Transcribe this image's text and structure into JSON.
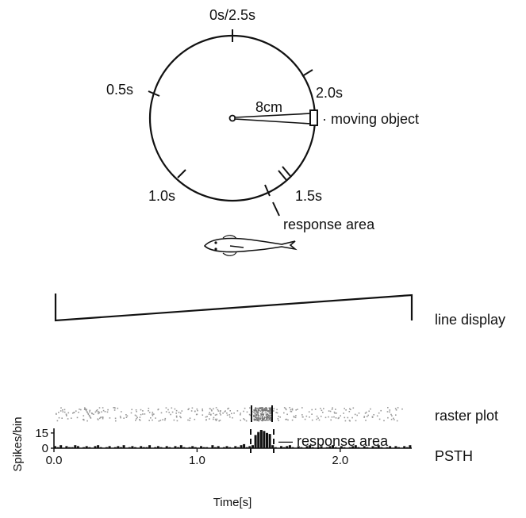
{
  "stimulus": {
    "time_labels": [
      "0s/2.5s",
      "2.0s",
      "0.5s",
      "1.0s",
      "1.5s"
    ],
    "distance_label": "8cm",
    "object_label": "· moving object",
    "response_area_label": "response area"
  },
  "line_display": {
    "label": "line display"
  },
  "raster": {
    "label": "raster plot"
  },
  "psth_panel": {
    "label": "PSTH",
    "response_area_label": "— response area"
  },
  "chart_data": {
    "type": "bar",
    "title": "",
    "xlabel": "Time[s]",
    "ylabel": "Spikes/bin",
    "xlim": [
      0,
      2.5
    ],
    "ylim": [
      0,
      18
    ],
    "x_ticks": [
      "0.0",
      "1.0",
      "2.0"
    ],
    "y_ticks": [
      "0",
      "15"
    ],
    "bin_width": 0.02,
    "values": [
      2,
      1,
      3,
      0,
      2,
      1,
      1,
      3,
      2,
      0,
      1,
      2,
      1,
      0,
      2,
      3,
      1,
      0,
      1,
      2,
      0,
      1,
      2,
      1,
      3,
      0,
      1,
      2,
      1,
      0,
      2,
      1,
      1,
      3,
      0,
      1,
      2,
      1,
      0,
      2,
      1,
      0,
      2,
      1,
      3,
      1,
      0,
      1,
      2,
      1,
      0,
      2,
      1,
      1,
      0,
      3,
      1,
      2,
      0,
      1,
      2,
      1,
      0,
      2,
      1,
      3,
      4,
      1,
      2,
      3,
      13,
      16,
      18,
      17,
      15,
      14,
      3,
      1,
      0,
      2,
      1,
      2,
      3,
      1,
      0,
      2,
      1,
      0,
      2,
      3,
      1,
      0,
      1,
      2,
      0,
      1,
      2,
      3,
      1,
      0,
      2,
      1,
      0,
      1,
      2,
      3,
      1,
      0,
      2,
      1,
      0,
      2,
      1,
      3,
      1,
      0,
      1,
      2,
      0,
      2,
      1,
      0,
      2,
      1,
      3
    ]
  }
}
